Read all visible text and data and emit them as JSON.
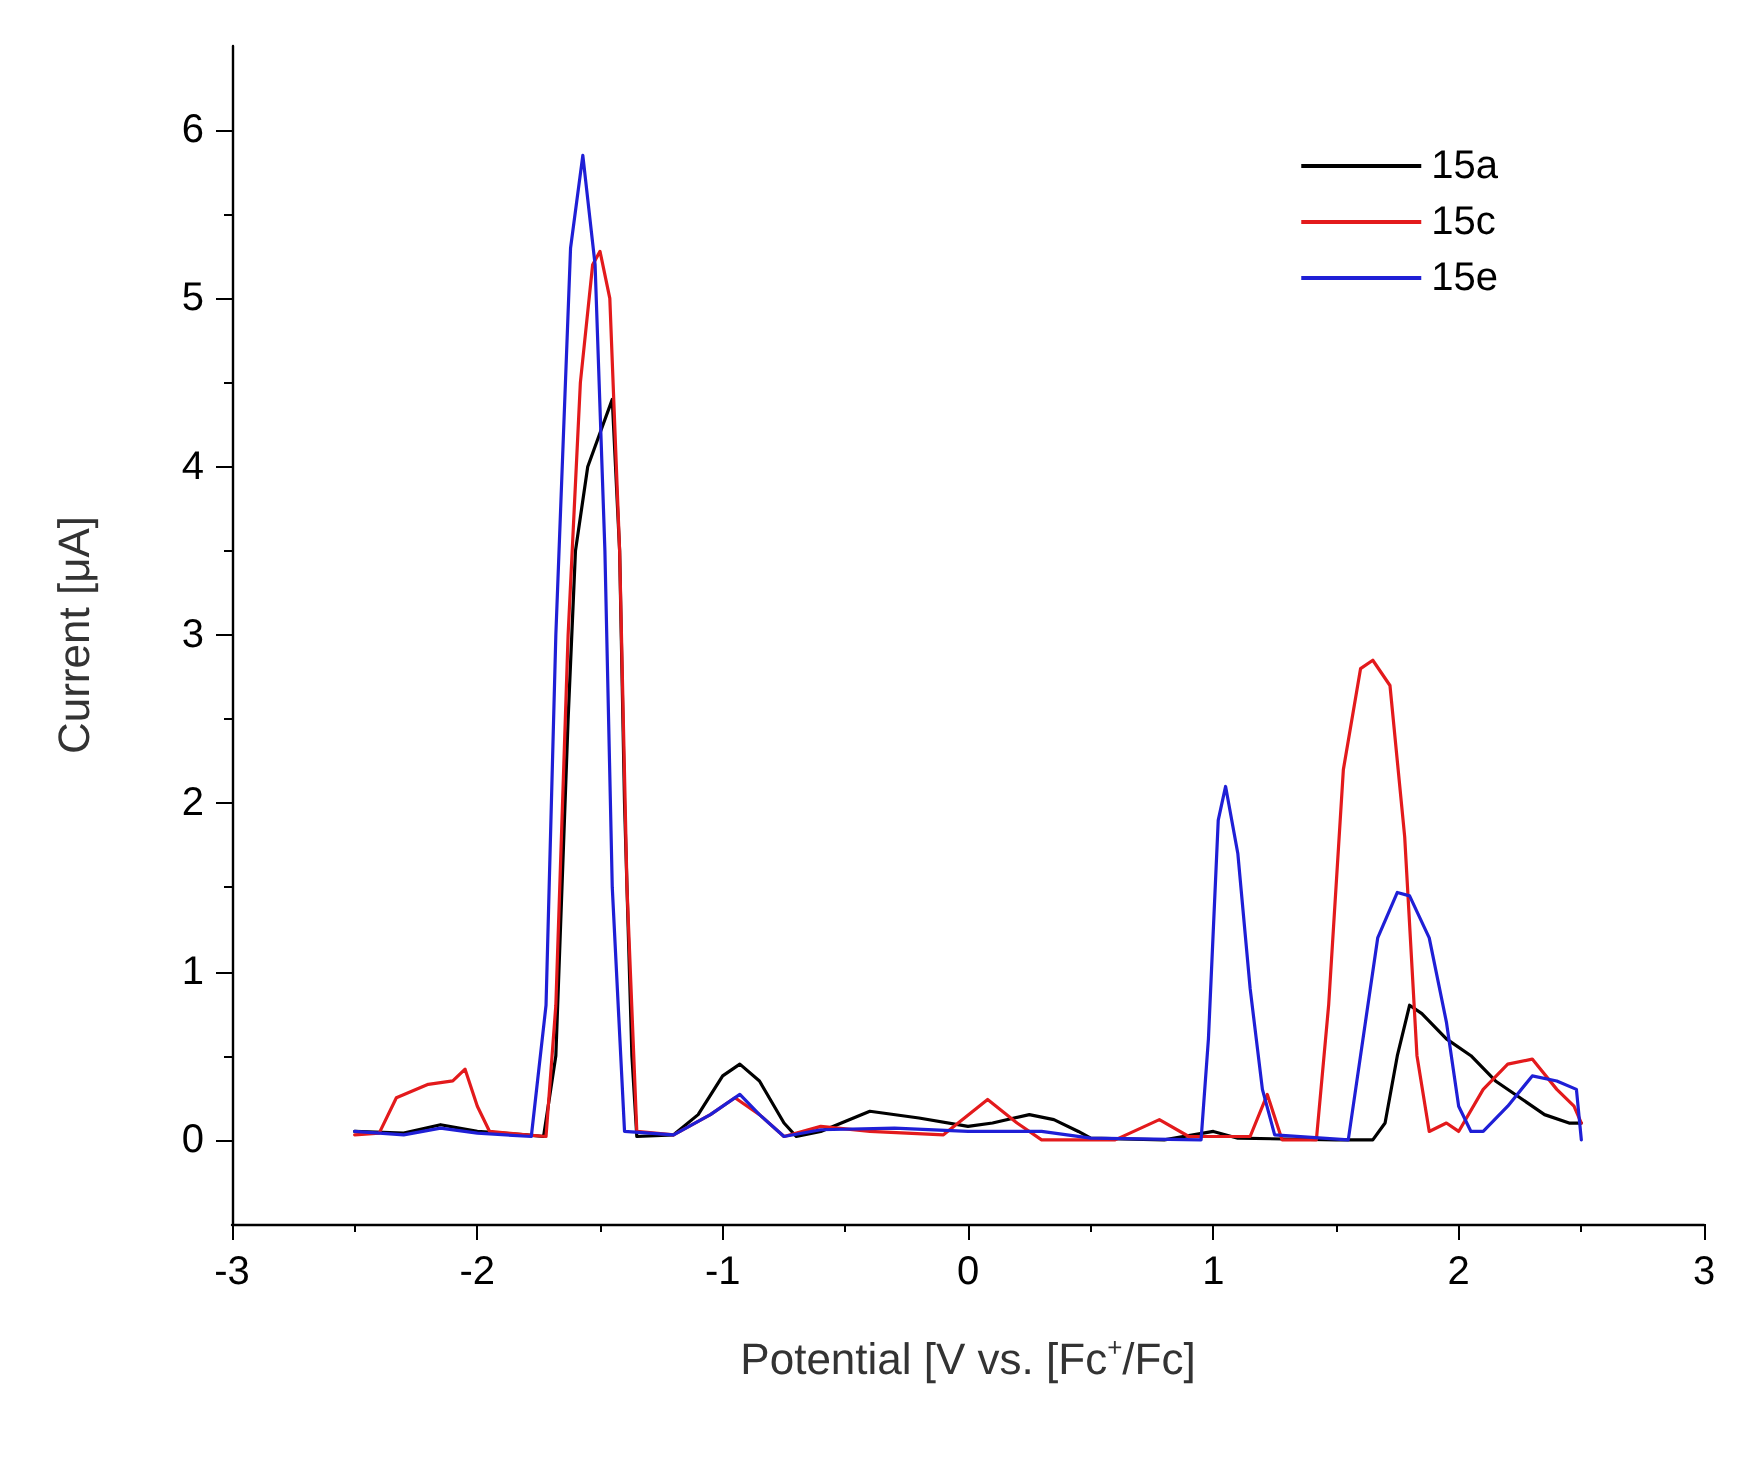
{
  "chart_data": {
    "type": "line",
    "xlabel": "Potential [V vs. [Fc$^{+}$/Fc]",
    "ylabel": "Current [μA]",
    "xlim": [
      -3,
      3
    ],
    "xticks": [
      -3,
      -2,
      -1,
      0,
      1,
      2,
      3
    ],
    "ylim": [
      -0.5,
      6.5
    ],
    "yticks": [
      0,
      1,
      2,
      3,
      4,
      5,
      6
    ],
    "grid": false,
    "legend": "top right",
    "marker": "none",
    "line_style": "solid",
    "series": [
      {
        "name": "15a",
        "color": "#000000",
        "x": [
          -2.5,
          -2.3,
          -2.15,
          -2.0,
          -1.8,
          -1.73,
          -1.68,
          -1.63,
          -1.6,
          -1.55,
          -1.5,
          -1.45,
          -1.42,
          -1.4,
          -1.37,
          -1.35,
          -1.2,
          -1.1,
          -1.0,
          -0.93,
          -0.85,
          -0.75,
          -0.7,
          -0.6,
          -0.4,
          -0.2,
          0,
          0.1,
          0.25,
          0.35,
          0.45,
          0.5,
          0.8,
          1.0,
          1.1,
          1.5,
          1.65,
          1.7,
          1.75,
          1.8,
          1.85,
          1.95,
          2.05,
          2.15,
          2.25,
          2.35,
          2.45,
          2.5
        ],
        "values": [
          0.05,
          0.04,
          0.09,
          0.05,
          0.03,
          0.02,
          0.5,
          2.5,
          3.5,
          4.0,
          4.2,
          4.4,
          3.5,
          2,
          0.5,
          0.02,
          0.03,
          0.15,
          0.38,
          0.45,
          0.35,
          0.1,
          0.02,
          0.05,
          0.17,
          0.13,
          0.08,
          0.1,
          0.15,
          0.12,
          0.05,
          0.01,
          0.0,
          0.05,
          0.01,
          0.0,
          0.0,
          0.1,
          0.5,
          0.8,
          0.75,
          0.6,
          0.5,
          0.35,
          0.25,
          0.15,
          0.1,
          0.1
        ]
      },
      {
        "name": "15c",
        "color": "#e31a1c",
        "x": [
          -2.5,
          -2.4,
          -2.33,
          -2.2,
          -2.1,
          -2.05,
          -2.0,
          -1.95,
          -1.8,
          -1.72,
          -1.68,
          -1.63,
          -1.58,
          -1.53,
          -1.5,
          -1.46,
          -1.42,
          -1.39,
          -1.35,
          -1.2,
          -1.05,
          -0.95,
          -0.85,
          -0.75,
          -0.6,
          -0.4,
          -0.1,
          0.08,
          0.2,
          0.3,
          0.6,
          0.78,
          0.9,
          1.15,
          1.22,
          1.28,
          1.42,
          1.47,
          1.53,
          1.6,
          1.65,
          1.72,
          1.78,
          1.83,
          1.88,
          1.95,
          2.0,
          2.1,
          2.2,
          2.3,
          2.4,
          2.47,
          2.5
        ],
        "values": [
          0.03,
          0.04,
          0.25,
          0.33,
          0.35,
          0.42,
          0.2,
          0.05,
          0.03,
          0.02,
          0.8,
          3.0,
          4.5,
          5.2,
          5.28,
          5.0,
          3.5,
          1.5,
          0.05,
          0.03,
          0.15,
          0.25,
          0.15,
          0.02,
          0.08,
          0.05,
          0.03,
          0.24,
          0.1,
          0.0,
          0.0,
          0.12,
          0.02,
          0.02,
          0.27,
          0.0,
          0.0,
          0.8,
          2.2,
          2.8,
          2.85,
          2.7,
          1.8,
          0.5,
          0.05,
          0.1,
          0.05,
          0.3,
          0.45,
          0.48,
          0.3,
          0.2,
          0.1
        ]
      },
      {
        "name": "15e",
        "color": "#1f1fd6",
        "x": [
          -2.5,
          -2.3,
          -2.15,
          -2.0,
          -1.78,
          -1.72,
          -1.68,
          -1.62,
          -1.57,
          -1.52,
          -1.48,
          -1.45,
          -1.4,
          -1.2,
          -1.05,
          -0.93,
          -0.85,
          -0.75,
          -0.6,
          -0.3,
          0,
          0.3,
          0.5,
          0.95,
          0.98,
          1.02,
          1.05,
          1.1,
          1.15,
          1.2,
          1.25,
          1.55,
          1.6,
          1.67,
          1.75,
          1.8,
          1.88,
          1.95,
          2.0,
          2.05,
          2.1,
          2.2,
          2.3,
          2.4,
          2.48,
          2.5
        ],
        "values": [
          0.05,
          0.03,
          0.07,
          0.04,
          0.02,
          0.8,
          3.0,
          5.3,
          5.85,
          5.2,
          3.5,
          1.5,
          0.05,
          0.03,
          0.15,
          0.27,
          0.15,
          0.02,
          0.06,
          0.07,
          0.05,
          0.05,
          0.01,
          0.0,
          0.6,
          1.9,
          2.1,
          1.7,
          0.9,
          0.3,
          0.03,
          0.0,
          0.5,
          1.2,
          1.47,
          1.45,
          1.2,
          0.7,
          0.2,
          0.05,
          0.05,
          0.2,
          0.38,
          0.35,
          0.3,
          0.0
        ]
      }
    ]
  }
}
